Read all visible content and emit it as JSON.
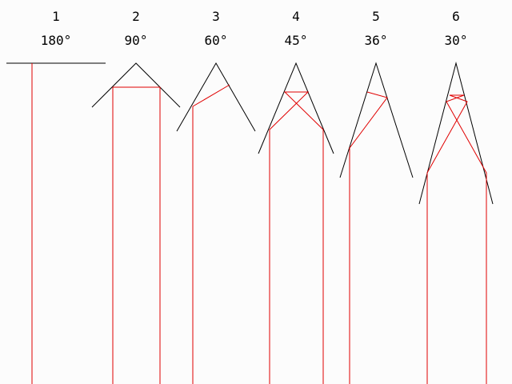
{
  "colors": {
    "background": "#fcfcfc",
    "mirror": "#000000",
    "ray": "#e00000"
  },
  "diagrams": [
    {
      "number": "1",
      "angle": "180°"
    },
    {
      "number": "2",
      "angle": "90°"
    },
    {
      "number": "3",
      "angle": "60°"
    },
    {
      "number": "4",
      "angle": "45°"
    },
    {
      "number": "5",
      "angle": "36°"
    },
    {
      "number": "6",
      "angle": "30°"
    }
  ]
}
